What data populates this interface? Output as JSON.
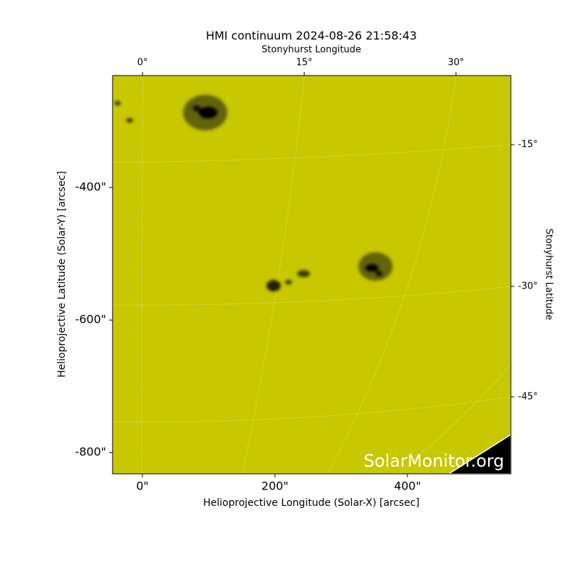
{
  "chart_data": {
    "type": "image",
    "title": "HMI continuum 2024-08-26 21:58:43",
    "x_label": "Helioprojective Longitude (Solar-X) [arcsec]",
    "y_label": "Helioprojective Latitude (Solar-Y) [arcsec]",
    "top_label": "Stonyhurst Longitude",
    "right_label": "Stonyhurst Latitude",
    "xlim": [
      -45,
      556
    ],
    "ylim": [
      -832,
      -231
    ],
    "xticks": [
      {
        "value": 0,
        "label": "0\""
      },
      {
        "value": 200,
        "label": "200\""
      },
      {
        "value": 400,
        "label": "400\""
      }
    ],
    "yticks": [
      {
        "value": -400,
        "label": "-400\""
      },
      {
        "value": -600,
        "label": "-600\""
      },
      {
        "value": -800,
        "label": "-800\""
      }
    ],
    "top_ticks": [
      "0°",
      "15°",
      "30°"
    ],
    "right_ticks": [
      "-15°",
      "-30°",
      "-45°"
    ],
    "watermark": "SolarMonitor.org",
    "color": "#c8c800"
  }
}
